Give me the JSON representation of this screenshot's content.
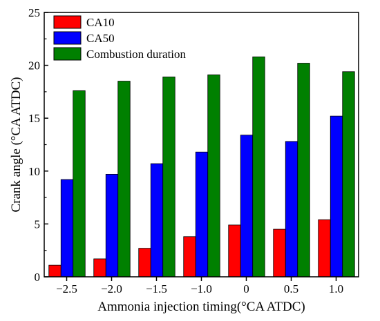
{
  "chart_data": {
    "type": "bar",
    "title": "",
    "xlabel": "Ammonia injection timing(°CA ATDC)",
    "ylabel": "Crank angle (°CA ATDC)",
    "categories": [
      "-2.5",
      "-2.0",
      "-1.5",
      "-1.0",
      "0",
      "0.5",
      "1.0"
    ],
    "category_tick_labels": [
      "−2.5",
      "−2.0",
      "−1.5",
      "−1.0",
      "0",
      "0.5",
      "1.0"
    ],
    "ylim": [
      0,
      25
    ],
    "yticks": [
      0,
      5,
      10,
      15,
      20,
      25
    ],
    "grid": false,
    "legend_position": "top-left",
    "series": [
      {
        "name": "CA10",
        "color": "#ff0000",
        "values": [
          1.1,
          1.7,
          2.7,
          3.8,
          4.9,
          4.5,
          5.4
        ]
      },
      {
        "name": "CA50",
        "color": "#0000ff",
        "values": [
          9.2,
          9.7,
          10.7,
          11.8,
          13.4,
          12.8,
          15.2
        ]
      },
      {
        "name": "Combustion duration",
        "color": "#008000",
        "values": [
          17.6,
          18.5,
          18.9,
          19.1,
          20.8,
          20.2,
          19.4
        ]
      }
    ]
  }
}
